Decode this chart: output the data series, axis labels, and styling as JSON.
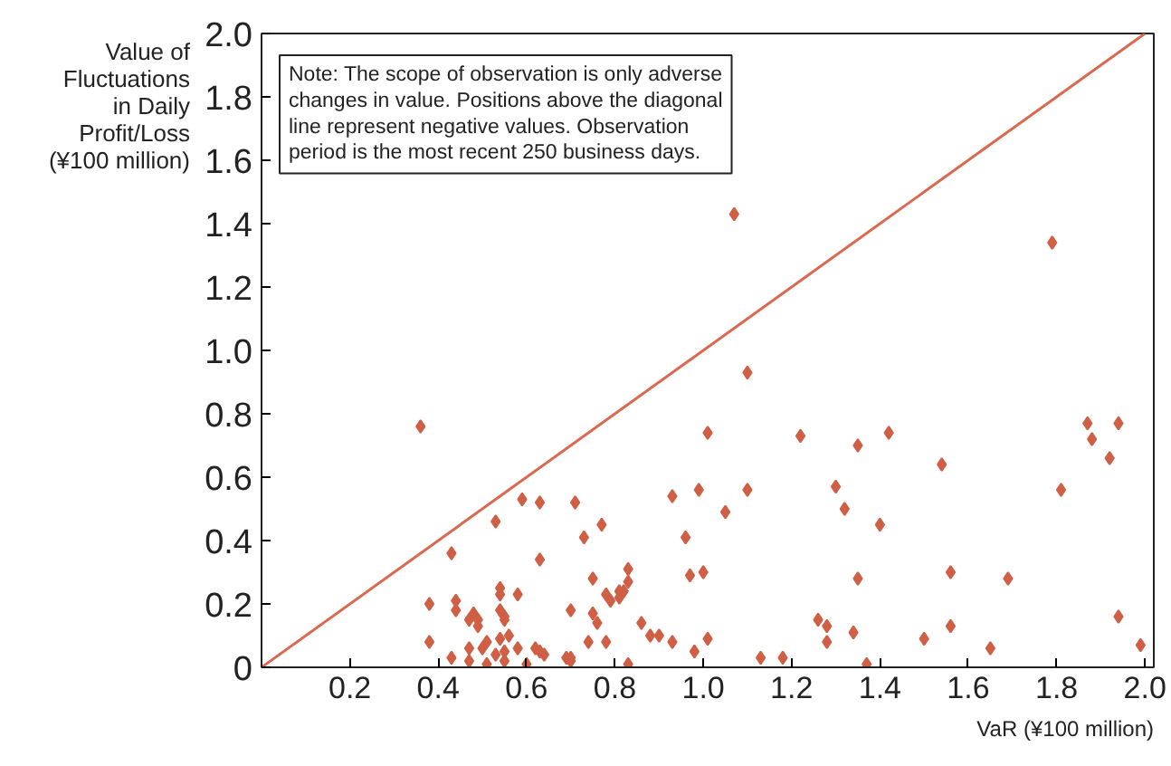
{
  "chart_data": {
    "type": "scatter",
    "ylabel": "Value of Fluctuations in Daily Profit/Loss (¥100 million)",
    "xlabel": "VaR (¥100 million)",
    "annotations": [
      "Note: The scope of observation is only adverse changes in value. Positions above the diagonal line represent negative values. Observation period is the most recent 250 business days."
    ],
    "xlim": [
      0,
      2.02
    ],
    "ylim": [
      0,
      2.0
    ],
    "xticks": [
      {
        "value": 0.2,
        "label": "0.2"
      },
      {
        "value": 0.4,
        "label": "0.4"
      },
      {
        "value": 0.6,
        "label": "0.6"
      },
      {
        "value": 0.8,
        "label": "0.8"
      },
      {
        "value": 1.0,
        "label": "1.0"
      },
      {
        "value": 1.2,
        "label": "1.2"
      },
      {
        "value": 1.4,
        "label": "1.4"
      },
      {
        "value": 1.6,
        "label": "1.6"
      },
      {
        "value": 1.8,
        "label": "1.8"
      },
      {
        "value": 2.0,
        "label": "2.0"
      }
    ],
    "yticks": [
      0,
      {
        "value": 0.2,
        "label": "0.2"
      },
      {
        "value": 0.4,
        "label": "0.4"
      },
      {
        "value": 0.6,
        "label": "0.6"
      },
      {
        "value": 0.8,
        "label": "0.8"
      },
      {
        "value": 1.0,
        "label": "1.0"
      },
      {
        "value": 1.2,
        "label": "1.2"
      },
      {
        "value": 1.4,
        "label": "1.4"
      },
      {
        "value": 1.6,
        "label": "1.6"
      },
      {
        "value": 1.8,
        "label": "1.8"
      },
      {
        "value": 2.0,
        "label": "2.0"
      }
    ],
    "grid": false,
    "marker": "diamond",
    "series": [
      {
        "type": "line",
        "marker": "none",
        "color": "#d9694f",
        "x": [
          0,
          2.0
        ],
        "values": [
          0,
          2.0
        ]
      },
      {
        "color": "#cf5f45",
        "x": [
          0.36,
          1.07,
          1.79,
          1.1,
          1.01,
          1.22,
          1.35,
          1.42,
          1.54,
          1.87,
          1.88,
          1.94,
          1.92,
          1.81,
          0.99,
          1.1,
          1.05,
          1.3,
          1.32,
          1.4,
          0.96,
          0.97,
          1.0,
          1.35,
          1.56,
          1.69,
          1.01,
          0.98,
          1.13,
          1.18,
          1.26,
          1.28,
          1.28,
          1.34,
          1.37,
          1.5,
          1.56,
          1.65,
          1.94,
          1.99,
          0.38,
          0.38,
          0.43,
          0.44,
          0.44,
          0.43,
          0.48,
          0.47,
          0.47,
          0.47,
          0.49,
          0.49,
          0.51,
          0.5,
          0.51,
          0.53,
          0.53,
          0.54,
          0.54,
          0.54,
          0.55,
          0.55,
          0.54,
          0.55,
          0.56,
          0.55,
          0.58,
          0.58,
          0.6,
          0.62,
          0.63,
          0.64,
          0.63,
          0.7,
          0.69,
          0.7,
          0.7,
          0.73,
          0.77,
          0.75,
          0.75,
          0.74,
          0.76,
          0.78,
          0.79,
          0.78,
          0.81,
          0.81,
          0.82,
          0.83,
          0.83,
          0.83,
          0.86,
          0.88,
          0.9,
          0.93,
          0.59,
          0.63,
          0.71,
          0.93
        ],
        "values": [
          0.76,
          1.43,
          1.34,
          0.93,
          0.74,
          0.73,
          0.7,
          0.74,
          0.64,
          0.77,
          0.72,
          0.77,
          0.66,
          0.56,
          0.56,
          0.56,
          0.49,
          0.57,
          0.5,
          0.45,
          0.41,
          0.29,
          0.3,
          0.28,
          0.3,
          0.28,
          0.09,
          0.05,
          0.03,
          0.03,
          0.15,
          0.13,
          0.08,
          0.11,
          0.01,
          0.09,
          0.13,
          0.06,
          0.16,
          0.07,
          0.2,
          0.08,
          0.36,
          0.21,
          0.18,
          0.03,
          0.17,
          0.15,
          0.06,
          0.02,
          0.15,
          0.13,
          0.08,
          0.06,
          0.01,
          0.46,
          0.04,
          0.25,
          0.23,
          0.18,
          0.16,
          0.15,
          0.09,
          0.05,
          0.1,
          0.02,
          0.23,
          0.06,
          0.01,
          0.06,
          0.05,
          0.04,
          0.34,
          0.18,
          0.03,
          0.02,
          0.03,
          0.41,
          0.45,
          0.28,
          0.17,
          0.08,
          0.14,
          0.23,
          0.21,
          0.08,
          0.24,
          0.22,
          0.24,
          0.27,
          0.31,
          0.01,
          0.14,
          0.1,
          0.1,
          0.08,
          0.53,
          0.52,
          0.52,
          0.54
        ]
      }
    ]
  }
}
